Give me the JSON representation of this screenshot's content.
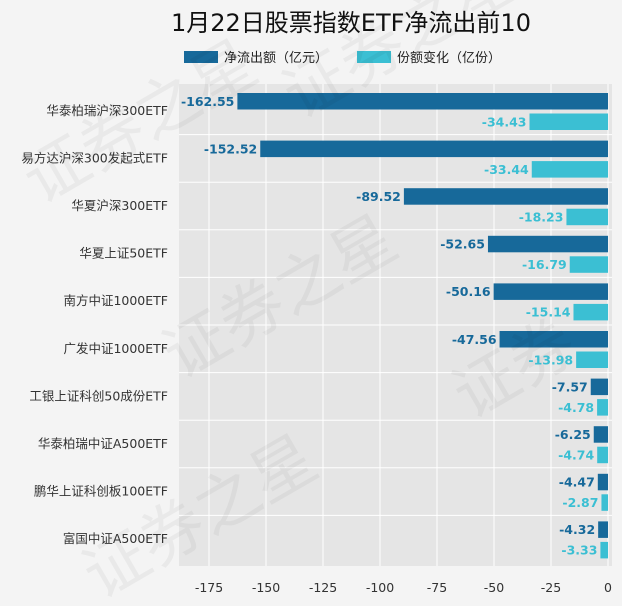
{
  "chart_data": {
    "type": "bar",
    "orientation": "horizontal",
    "title": "1月22日股票指数ETF净流出前10",
    "xlabel": "",
    "ylabel": "",
    "xlim": [
      -190,
      0
    ],
    "xticks": [
      -175,
      -150,
      -125,
      -100,
      -75,
      -50,
      -25,
      0
    ],
    "grid": true,
    "legend_position": "top",
    "categories": [
      "华泰柏瑞沪深300ETF",
      "易方达沪深300发起式ETF",
      "华夏沪深300ETF",
      "华夏上证50ETF",
      "南方中证1000ETF",
      "广发中证1000ETF",
      "工银上证科创50成份ETF",
      "华泰柏瑞中证A500ETF",
      "鹏华上证科创板100ETF",
      "富国中证A500ETF"
    ],
    "series": [
      {
        "name": "净流出额（亿元）",
        "color": "#17699a",
        "values": [
          -162.55,
          -152.52,
          -89.52,
          -52.65,
          -50.16,
          -47.56,
          -7.57,
          -6.25,
          -4.47,
          -4.32
        ]
      },
      {
        "name": "份额变化（亿份）",
        "color": "#3bbfd3",
        "values": [
          -34.43,
          -33.44,
          -18.23,
          -16.79,
          -15.14,
          -13.98,
          -4.78,
          -4.74,
          -2.87,
          -3.33
        ]
      }
    ]
  }
}
